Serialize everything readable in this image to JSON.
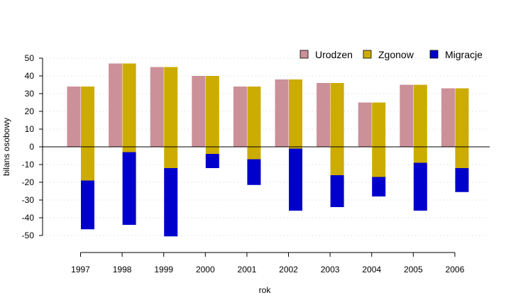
{
  "chart_data": {
    "type": "bar",
    "xlabel": "rok",
    "ylabel": "bilans osobowy",
    "ylim": [
      -50,
      50
    ],
    "yticks": [
      -50,
      -40,
      -30,
      -20,
      -10,
      0,
      10,
      20,
      30,
      40,
      50
    ],
    "grid": true,
    "legend_position": "top-right",
    "categories": [
      "1997",
      "1998",
      "1999",
      "2000",
      "2001",
      "2002",
      "2003",
      "2004",
      "2005",
      "2006"
    ],
    "series": [
      {
        "name": "Urodzen",
        "color": "#cc9099",
        "bottom": [
          0,
          0,
          0,
          0,
          0,
          0,
          0,
          0,
          0,
          0
        ],
        "top": [
          34,
          47,
          45,
          40,
          34,
          38,
          36,
          25,
          35,
          33
        ]
      },
      {
        "name": "Zgonow",
        "color": "#ccac00",
        "bottom": [
          -19,
          -3,
          -12,
          -4,
          -7,
          -1,
          -16,
          -17,
          -9,
          -12
        ],
        "top": [
          34,
          47,
          45,
          40,
          34,
          38,
          36,
          25,
          35,
          33
        ]
      },
      {
        "name": "Migracje",
        "color": "#0000cc",
        "bottom": [
          -46.5,
          -44,
          -50.5,
          -12,
          -21.5,
          -36,
          -34,
          -28,
          -36,
          -25.5
        ],
        "top": [
          -19,
          -3,
          -12,
          -4,
          -7,
          -1,
          -16,
          -17,
          -9,
          -12
        ]
      }
    ]
  }
}
